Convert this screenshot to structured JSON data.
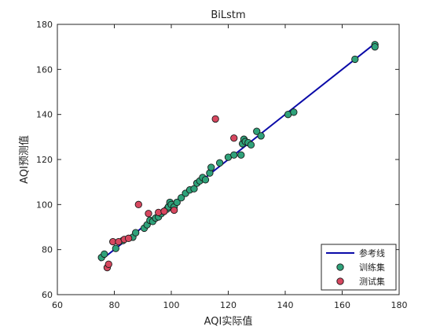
{
  "chart_data": {
    "type": "scatter",
    "title": "BiLstm",
    "xlabel": "AQI实际值",
    "ylabel": "AQI预测值",
    "xlim": [
      60,
      180
    ],
    "ylim": [
      60,
      180
    ],
    "x_ticks": [
      60,
      80,
      100,
      120,
      140,
      160,
      180
    ],
    "y_ticks": [
      60,
      80,
      100,
      120,
      140,
      160,
      180
    ],
    "grid": false,
    "legend_position": "bottom-right",
    "reference_line": {
      "name": "参考线",
      "color": "#0a0aa8",
      "points": [
        [
          75,
          75
        ],
        [
          172,
          172
        ]
      ]
    },
    "series": [
      {
        "name": "训练集",
        "color": "#2fa27a",
        "points": [
          [
            75.5,
            76.5
          ],
          [
            76.5,
            78
          ],
          [
            80.5,
            80.5
          ],
          [
            83,
            84
          ],
          [
            86.5,
            85.5
          ],
          [
            87.5,
            87.5
          ],
          [
            90.5,
            89.5
          ],
          [
            91.5,
            91
          ],
          [
            92.5,
            93
          ],
          [
            93.5,
            92.5
          ],
          [
            94.5,
            94
          ],
          [
            95.5,
            94.5
          ],
          [
            96.5,
            96
          ],
          [
            97.5,
            97
          ],
          [
            98.5,
            98
          ],
          [
            99,
            99
          ],
          [
            99.5,
            101
          ],
          [
            100,
            100
          ],
          [
            101,
            99
          ],
          [
            102,
            101
          ],
          [
            103.5,
            103
          ],
          [
            105,
            105
          ],
          [
            106.5,
            106.5
          ],
          [
            108,
            107
          ],
          [
            109,
            109.5
          ],
          [
            110,
            110.5
          ],
          [
            111,
            112
          ],
          [
            112,
            111
          ],
          [
            113.5,
            114
          ],
          [
            114,
            116.5
          ],
          [
            117,
            118.5
          ],
          [
            120,
            121
          ],
          [
            122,
            122
          ],
          [
            124.5,
            122
          ],
          [
            125,
            127
          ],
          [
            125.5,
            129
          ],
          [
            126,
            128
          ],
          [
            127,
            127.5
          ],
          [
            128,
            126.5
          ],
          [
            130,
            132.5
          ],
          [
            131.5,
            130.5
          ],
          [
            141,
            140
          ],
          [
            143,
            141
          ],
          [
            164.5,
            164.5
          ],
          [
            171.5,
            171
          ],
          [
            171.5,
            170
          ]
        ]
      },
      {
        "name": "测试集",
        "color": "#d7475f",
        "points": [
          [
            77.5,
            72
          ],
          [
            78,
            73.5
          ],
          [
            79.5,
            83.5
          ],
          [
            81.5,
            83.5
          ],
          [
            83.5,
            84.5
          ],
          [
            85,
            85
          ],
          [
            88.5,
            100
          ],
          [
            92,
            96
          ],
          [
            95.5,
            96.5
          ],
          [
            97.5,
            97
          ],
          [
            101,
            97.5
          ],
          [
            115.5,
            138
          ],
          [
            122,
            129.5
          ]
        ]
      }
    ]
  }
}
